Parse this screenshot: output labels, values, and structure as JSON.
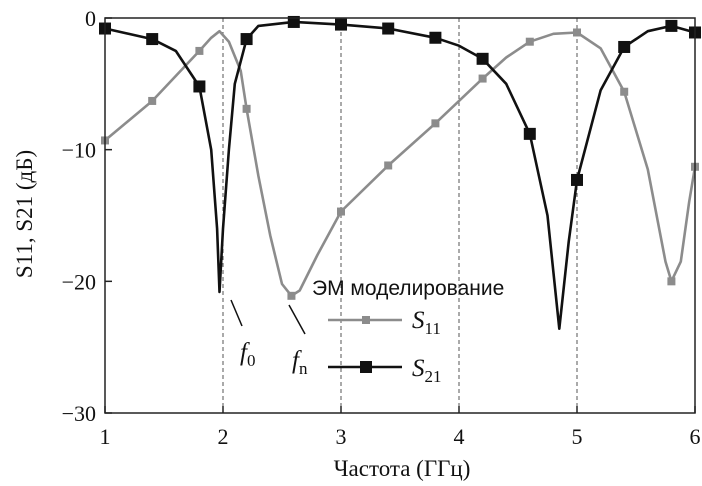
{
  "chart_data": {
    "type": "line",
    "xlabel": "Частота (ГГц)",
    "ylabel": "S11, S21 (дБ)",
    "xlim": [
      1,
      6
    ],
    "ylim": [
      -30,
      0
    ],
    "xticks": [
      1,
      2,
      3,
      4,
      5,
      6
    ],
    "yticks": [
      0,
      -10,
      -20,
      -30
    ],
    "xtick_labels": [
      "1",
      "2",
      "3",
      "4",
      "5",
      "6"
    ],
    "ytick_labels": [
      "0",
      "−10",
      "−20",
      "−30"
    ],
    "grid": "vertical dashed",
    "legend": {
      "title": "ЭМ моделирование",
      "placement": "lower-center"
    },
    "series": [
      {
        "name": "S11",
        "name_main": "S",
        "name_sub": "11",
        "color": "#8c8c8c",
        "marker": "small-square",
        "curve": [
          [
            1.0,
            -9.3
          ],
          [
            1.4,
            -6.3
          ],
          [
            1.8,
            -2.5
          ],
          [
            1.9,
            -1.5
          ],
          [
            1.97,
            -1.0
          ],
          [
            2.05,
            -1.8
          ],
          [
            2.15,
            -4.0
          ],
          [
            2.2,
            -6.9
          ],
          [
            2.3,
            -12.0
          ],
          [
            2.4,
            -16.5
          ],
          [
            2.5,
            -20.2
          ],
          [
            2.58,
            -21.1
          ],
          [
            2.65,
            -20.7
          ],
          [
            2.8,
            -18.0
          ],
          [
            3.0,
            -14.7
          ],
          [
            3.4,
            -11.2
          ],
          [
            3.8,
            -8.0
          ],
          [
            4.2,
            -4.6
          ],
          [
            4.4,
            -3.0
          ],
          [
            4.6,
            -1.8
          ],
          [
            4.8,
            -1.2
          ],
          [
            5.0,
            -1.1
          ],
          [
            5.2,
            -2.3
          ],
          [
            5.4,
            -5.6
          ],
          [
            5.6,
            -11.5
          ],
          [
            5.75,
            -18.5
          ],
          [
            5.8,
            -20.0
          ],
          [
            5.88,
            -18.5
          ],
          [
            5.95,
            -14.0
          ],
          [
            6.0,
            -11.3
          ]
        ],
        "markers_x": [
          1.0,
          1.4,
          1.8,
          2.2,
          2.58,
          3.0,
          3.4,
          3.8,
          4.2,
          4.6,
          5.0,
          5.4,
          5.8,
          6.0
        ],
        "markers_y": [
          -9.3,
          -6.3,
          -2.5,
          -6.9,
          -21.1,
          -14.7,
          -11.2,
          -8.0,
          -4.6,
          -1.8,
          -1.1,
          -5.6,
          -20.0,
          -11.3
        ]
      },
      {
        "name": "S21",
        "name_main": "S",
        "name_sub": "21",
        "color": "#111111",
        "marker": "large-square",
        "curve": [
          [
            1.0,
            -0.8
          ],
          [
            1.4,
            -1.6
          ],
          [
            1.6,
            -2.5
          ],
          [
            1.8,
            -5.2
          ],
          [
            1.9,
            -10.0
          ],
          [
            1.95,
            -16.0
          ],
          [
            1.97,
            -20.8
          ],
          [
            2.0,
            -16.0
          ],
          [
            2.05,
            -10.0
          ],
          [
            2.1,
            -5.0
          ],
          [
            2.2,
            -1.6
          ],
          [
            2.3,
            -0.6
          ],
          [
            2.6,
            -0.3
          ],
          [
            3.0,
            -0.5
          ],
          [
            3.4,
            -0.8
          ],
          [
            3.8,
            -1.5
          ],
          [
            4.0,
            -2.1
          ],
          [
            4.2,
            -3.1
          ],
          [
            4.4,
            -5.0
          ],
          [
            4.6,
            -8.8
          ],
          [
            4.75,
            -15.0
          ],
          [
            4.85,
            -23.6
          ],
          [
            4.93,
            -17.0
          ],
          [
            5.0,
            -12.3
          ],
          [
            5.2,
            -5.5
          ],
          [
            5.4,
            -2.2
          ],
          [
            5.6,
            -1.0
          ],
          [
            5.8,
            -0.6
          ],
          [
            6.0,
            -1.1
          ]
        ],
        "markers_x": [
          1.0,
          1.4,
          1.8,
          2.2,
          2.6,
          3.0,
          3.4,
          3.8,
          4.2,
          4.6,
          5.0,
          5.4,
          5.8,
          6.0
        ],
        "markers_y": [
          -0.8,
          -1.6,
          -5.2,
          -1.6,
          -0.3,
          -0.5,
          -0.8,
          -1.5,
          -3.1,
          -8.8,
          -12.3,
          -2.2,
          -0.6,
          -1.1
        ]
      }
    ],
    "annotations": [
      {
        "main": "f",
        "sub": "0",
        "points_to": [
          1.97,
          -20.8
        ]
      },
      {
        "main": "f",
        "sub": "n",
        "points_to": [
          2.58,
          -21.1
        ]
      }
    ]
  }
}
